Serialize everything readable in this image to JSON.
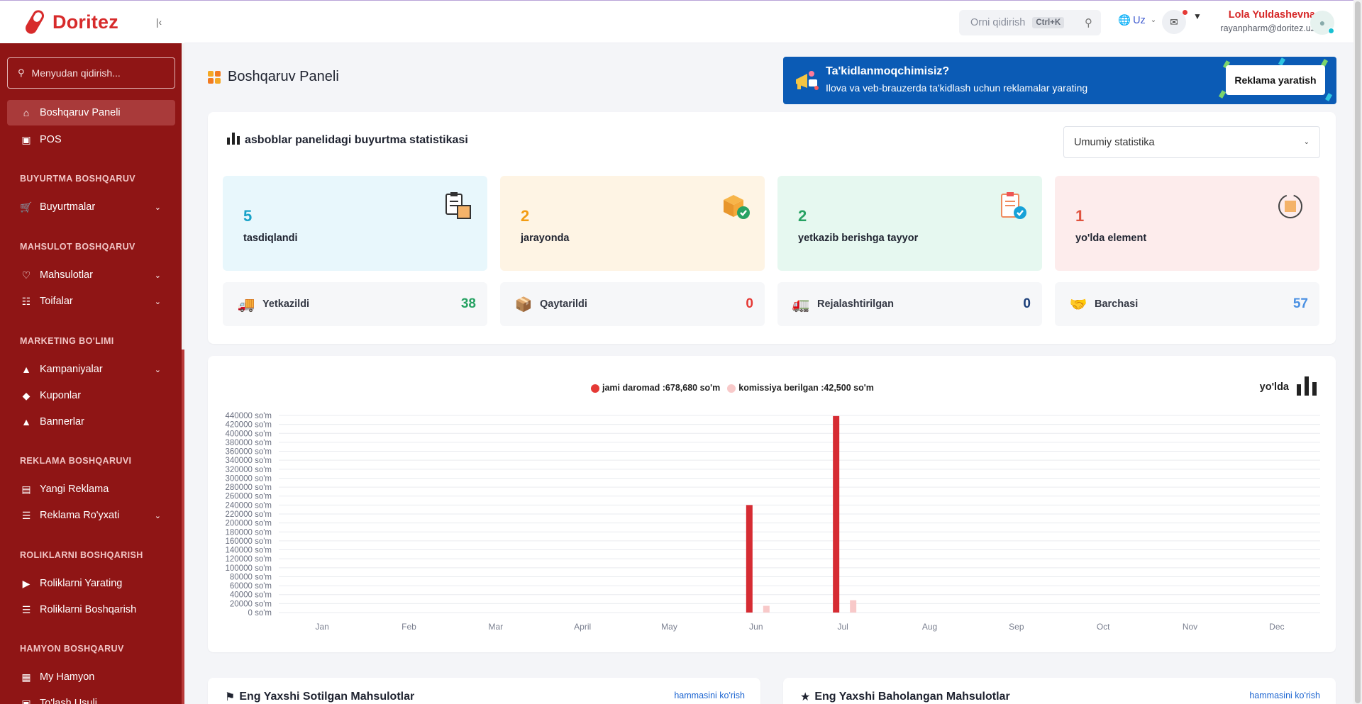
{
  "brand": {
    "name": "Doritez",
    "accent": "#d72b2b",
    "sidebar_bg": "#8f1515"
  },
  "sidebar": {
    "search_placeholder": "Menyudan qidirish...",
    "items": [
      {
        "label": "Boshqaruv Paneli",
        "icon": "home-icon"
      },
      {
        "label": "POS",
        "icon": "pos-icon"
      },
      {
        "label": "Buyurtmalar",
        "icon": "cart-icon"
      },
      {
        "label": "Mahsulotlar",
        "icon": "tag-icon"
      },
      {
        "label": "Toifalar",
        "icon": "category-icon"
      },
      {
        "label": "Kampaniyalar",
        "icon": "landscape-icon"
      },
      {
        "label": "Kuponlar",
        "icon": "coupon-icon"
      },
      {
        "label": "Bannerlar",
        "icon": "banner-icon"
      },
      {
        "label": "Yangi Reklama",
        "icon": "ad-icon"
      },
      {
        "label": "Reklama Ro'yxati",
        "icon": "list-icon"
      },
      {
        "label": "Roliklarni Yarating",
        "icon": "video-icon"
      },
      {
        "label": "Roliklarni Boshqarish",
        "icon": "list-icon"
      },
      {
        "label": "My Hamyon",
        "icon": "wallet-icon"
      },
      {
        "label": "To'lash Usuli",
        "icon": "payment-icon"
      }
    ],
    "sections": [
      "BUYURTMA BOSHQARUV",
      "MAHSULOT BOSHQARUV",
      "MARKETING BO'LIMI",
      "REKLAMA BOSHQARUVI",
      "ROLIKLARNI BOSHQARISH",
      "HAMYON BOSHQARUV"
    ]
  },
  "header": {
    "search_placeholder": "Orni qidirish",
    "search_shortcut": "Ctrl+K",
    "language": "Uz",
    "user_name": "Lola Yuldashevna",
    "user_email": "rayanpharm@doritez.uz"
  },
  "page": {
    "title": "Boshqaruv Paneli"
  },
  "promo": {
    "title": "Ta'kidlanmoqchimisiz?",
    "subtitle": "Ilova va veb-brauzerda ta'kidlash uchun reklamalar yarating",
    "button": "Reklama yaratish",
    "bg": "#0b5bb5"
  },
  "stats": {
    "title": "asboblar panelidagi buyurtma statistikasi",
    "select_value": "Umumiy statistika",
    "boxes": [
      {
        "value": "5",
        "label": "tasdiqlandi",
        "color": "#17a2c8",
        "bg": "#e8f7fc"
      },
      {
        "value": "2",
        "label": "jarayonda",
        "color": "#f39c12",
        "bg": "#fef4e4"
      },
      {
        "value": "2",
        "label": "yetkazib berishga tayyor",
        "color": "#27a263",
        "bg": "#e6f8f0"
      },
      {
        "value": "1",
        "label": "yo'lda element",
        "color": "#e0533f",
        "bg": "#fdecec"
      }
    ],
    "mini": [
      {
        "label": "Yetkazildi",
        "value": "38",
        "color": "#27a263"
      },
      {
        "label": "Qaytarildi",
        "value": "0",
        "color": "#e53935"
      },
      {
        "label": "Rejalashtirilgan",
        "value": "0",
        "color": "#1c3f7a"
      },
      {
        "label": "Barchasi",
        "value": "57",
        "color": "#4a90e2"
      }
    ]
  },
  "chart": {
    "right_label": "yo'lda",
    "legend": [
      {
        "label": "jami daromad :678,680 so'm",
        "color": "#e53935"
      },
      {
        "label": "komissiya berilgan :42,500 so'm",
        "color": "#f8c9c9"
      }
    ]
  },
  "chart_data": {
    "type": "bar",
    "categories": [
      "Jan",
      "Feb",
      "Mar",
      "April",
      "May",
      "Jun",
      "Jul",
      "Aug",
      "Sep",
      "Oct",
      "Nov",
      "Dec"
    ],
    "series": [
      {
        "name": "jami daromad :678,680 so'm",
        "values": [
          0,
          0,
          0,
          0,
          0,
          240000,
          438680,
          0,
          0,
          0,
          0,
          0
        ],
        "color": "#d62c33"
      },
      {
        "name": "komissiya berilgan :42,500 so'm",
        "values": [
          0,
          0,
          0,
          0,
          0,
          15000,
          27500,
          0,
          0,
          0,
          0,
          0
        ],
        "color": "#f8c9c9"
      }
    ],
    "yticks": [
      "0 so'm",
      "20000 so'm",
      "40000 so'm",
      "60000 so'm",
      "80000 so'm",
      "100000 so'm",
      "120000 so'm",
      "140000 so'm",
      "160000 so'm",
      "180000 so'm",
      "200000 so'm",
      "220000 so'm",
      "240000 so'm",
      "260000 so'm",
      "280000 so'm",
      "300000 so'm",
      "320000 so'm",
      "340000 so'm",
      "360000 so'm",
      "380000 so'm",
      "400000 so'm",
      "420000 so'm",
      "440000 so'm"
    ],
    "ylim": [
      0,
      440000
    ],
    "grid": true,
    "legend_position": "top-center"
  },
  "bottom": {
    "left_title": "Eng Yaxshi Sotilgan Mahsulotlar",
    "right_title": "Eng Yaxshi Baholangan Mahsulotlar",
    "see_all": "hammasini ko'rish"
  }
}
